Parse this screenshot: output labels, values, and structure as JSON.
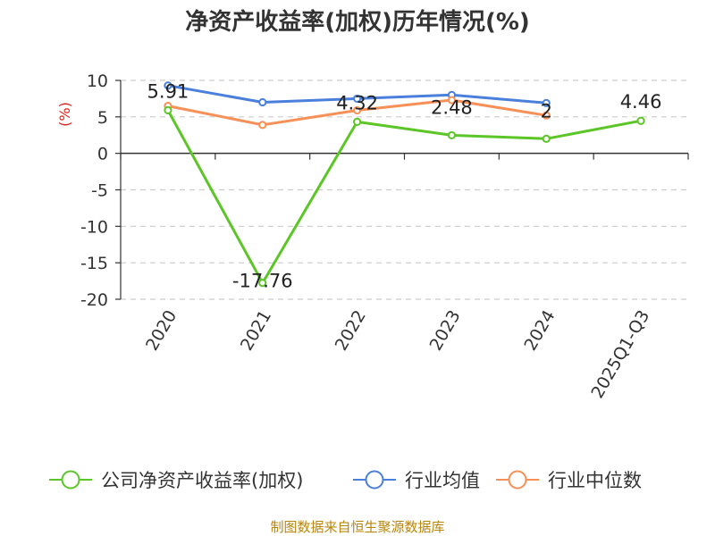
{
  "chart_data": {
    "type": "line",
    "title": "净资产收益率(加权)历年情况(%)",
    "ylabel": "(%)",
    "categories": [
      "2020",
      "2021",
      "2022",
      "2023",
      "2024",
      "2025Q1-Q3"
    ],
    "ylim": [
      -20,
      10
    ],
    "yticks": [
      10,
      5,
      0,
      -5,
      -10,
      -15,
      -20
    ],
    "grid": true,
    "legend_position": "bottom",
    "series": [
      {
        "name": "公司净资产收益率(加权)",
        "color": "#5cc527",
        "values": [
          5.91,
          -17.76,
          4.32,
          2.48,
          2,
          4.46
        ],
        "labels": [
          "5.91",
          "-17.76",
          "4.32",
          "2.48",
          "2",
          "4.46"
        ]
      },
      {
        "name": "行业均值",
        "color": "#4a7fdc",
        "values": [
          9.3,
          7.0,
          7.5,
          8.0,
          6.9,
          null
        ]
      },
      {
        "name": "行业中位数",
        "color": "#f79057",
        "values": [
          6.5,
          3.9,
          5.9,
          7.3,
          5.2,
          null
        ]
      }
    ]
  },
  "source": "制图数据来自恒生聚源数据库"
}
